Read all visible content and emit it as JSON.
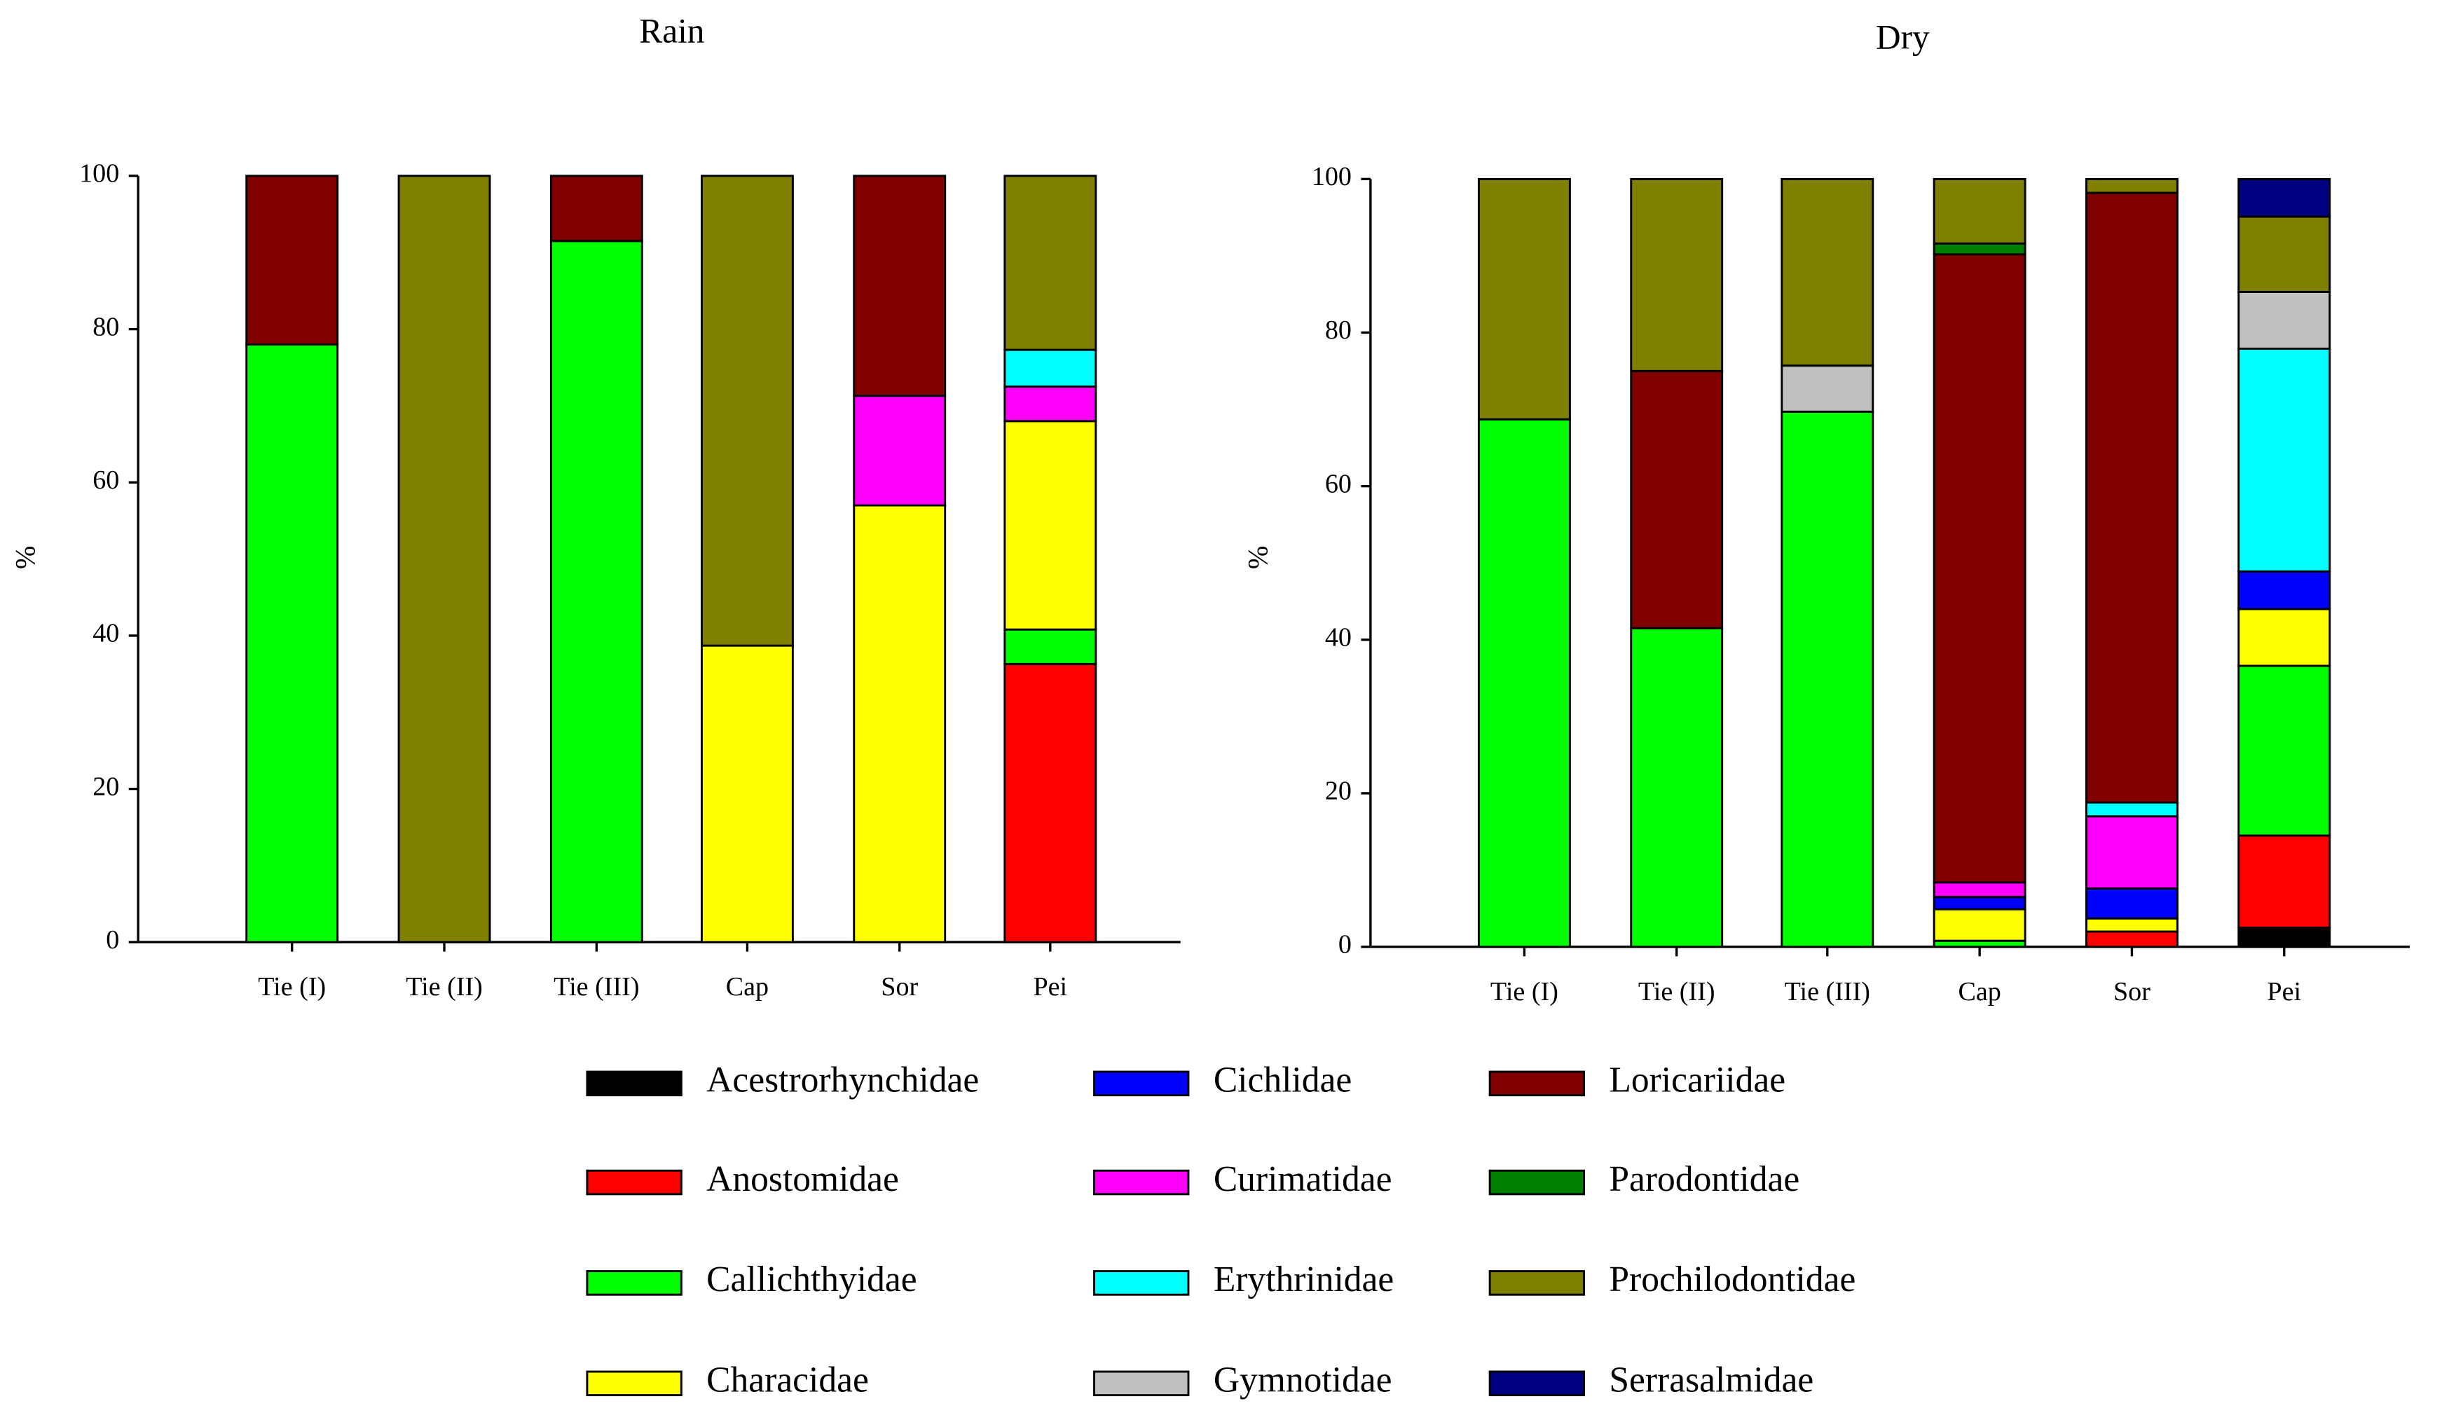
{
  "chart_data": [
    {
      "type": "stacked_bar",
      "title": "Rain",
      "y_label": "%",
      "categories": [
        "Tie (I)",
        "Tie (II)",
        "Tie (III)",
        "Cap",
        "Sor",
        "Pei"
      ],
      "ylim": [
        0,
        100
      ],
      "yticks": [
        0,
        20,
        40,
        60,
        80,
        100
      ],
      "series": [
        {
          "name": "Acestrorhynchidae",
          "color": "#000000",
          "values": [
            null,
            null,
            null,
            null,
            null,
            null
          ]
        },
        {
          "name": "Anostomidae",
          "color": "#ff0000",
          "values": [
            null,
            null,
            null,
            null,
            null,
            36.3
          ]
        },
        {
          "name": "Callichthyidae",
          "color": "#00ff00",
          "values": [
            78,
            null,
            91.5,
            null,
            null,
            4.5
          ]
        },
        {
          "name": "Characidae",
          "color": "#ffff00",
          "values": [
            null,
            null,
            null,
            38.7,
            57,
            27.2
          ]
        },
        {
          "name": "Cichlidae",
          "color": "#0000ff",
          "values": [
            null,
            null,
            null,
            null,
            null,
            null
          ]
        },
        {
          "name": "Curimatidae",
          "color": "#ff00ff",
          "values": [
            null,
            null,
            null,
            null,
            14.3,
            4.5
          ]
        },
        {
          "name": "Erythrinidae",
          "color": "#00ffff",
          "values": [
            null,
            null,
            null,
            null,
            null,
            4.8
          ]
        },
        {
          "name": "Gymnotidae",
          "color": "#c0c0c0",
          "values": [
            null,
            null,
            null,
            null,
            null,
            null
          ]
        },
        {
          "name": "Loricariidae",
          "color": "#800000",
          "values": [
            22,
            null,
            8.5,
            null,
            28.7,
            null
          ]
        },
        {
          "name": "Parodontidae",
          "color": "#008000",
          "values": [
            null,
            null,
            null,
            null,
            null,
            null
          ]
        },
        {
          "name": "Prochilodontidae",
          "color": "#808000",
          "values": [
            null,
            100,
            null,
            61.3,
            null,
            22.7
          ]
        },
        {
          "name": "Serrasalmidae",
          "color": "#000080",
          "values": [
            null,
            null,
            null,
            null,
            null,
            null
          ]
        }
      ]
    },
    {
      "type": "stacked_bar",
      "title": "Dry",
      "y_label": "%",
      "categories": [
        "Tie (I)",
        "Tie (II)",
        "Tie (III)",
        "Cap",
        "Sor",
        "Pei"
      ],
      "ylim": [
        0,
        100
      ],
      "yticks": [
        0,
        20,
        40,
        60,
        80,
        100
      ],
      "series": [
        {
          "values": [
            null,
            null,
            null,
            null,
            null,
            2.5
          ]
        },
        {
          "values": [
            null,
            null,
            null,
            null,
            2,
            12
          ]
        },
        {
          "values": [
            68.7,
            41.5,
            69.7,
            0.8,
            null,
            22.1
          ]
        },
        {
          "values": [
            null,
            null,
            null,
            4.1,
            1.7,
            7.4
          ]
        },
        {
          "values": [
            null,
            null,
            null,
            1.6,
            3.9,
            4.9
          ]
        },
        {
          "values": [
            null,
            null,
            null,
            1.9,
            9.4,
            null
          ]
        },
        {
          "values": [
            null,
            null,
            null,
            null,
            1.8,
            29
          ]
        },
        {
          "values": [
            null,
            null,
            6,
            null,
            null,
            7.4
          ]
        },
        {
          "values": [
            null,
            33.5,
            null,
            81.8,
            79.4,
            null
          ]
        },
        {
          "values": [
            null,
            null,
            null,
            1.4,
            null,
            null
          ]
        },
        {
          "values": [
            31.3,
            25,
            24.3,
            8.4,
            1.8,
            9.8
          ]
        },
        {
          "values": [
            null,
            null,
            null,
            null,
            null,
            4.9
          ]
        }
      ]
    }
  ]
}
